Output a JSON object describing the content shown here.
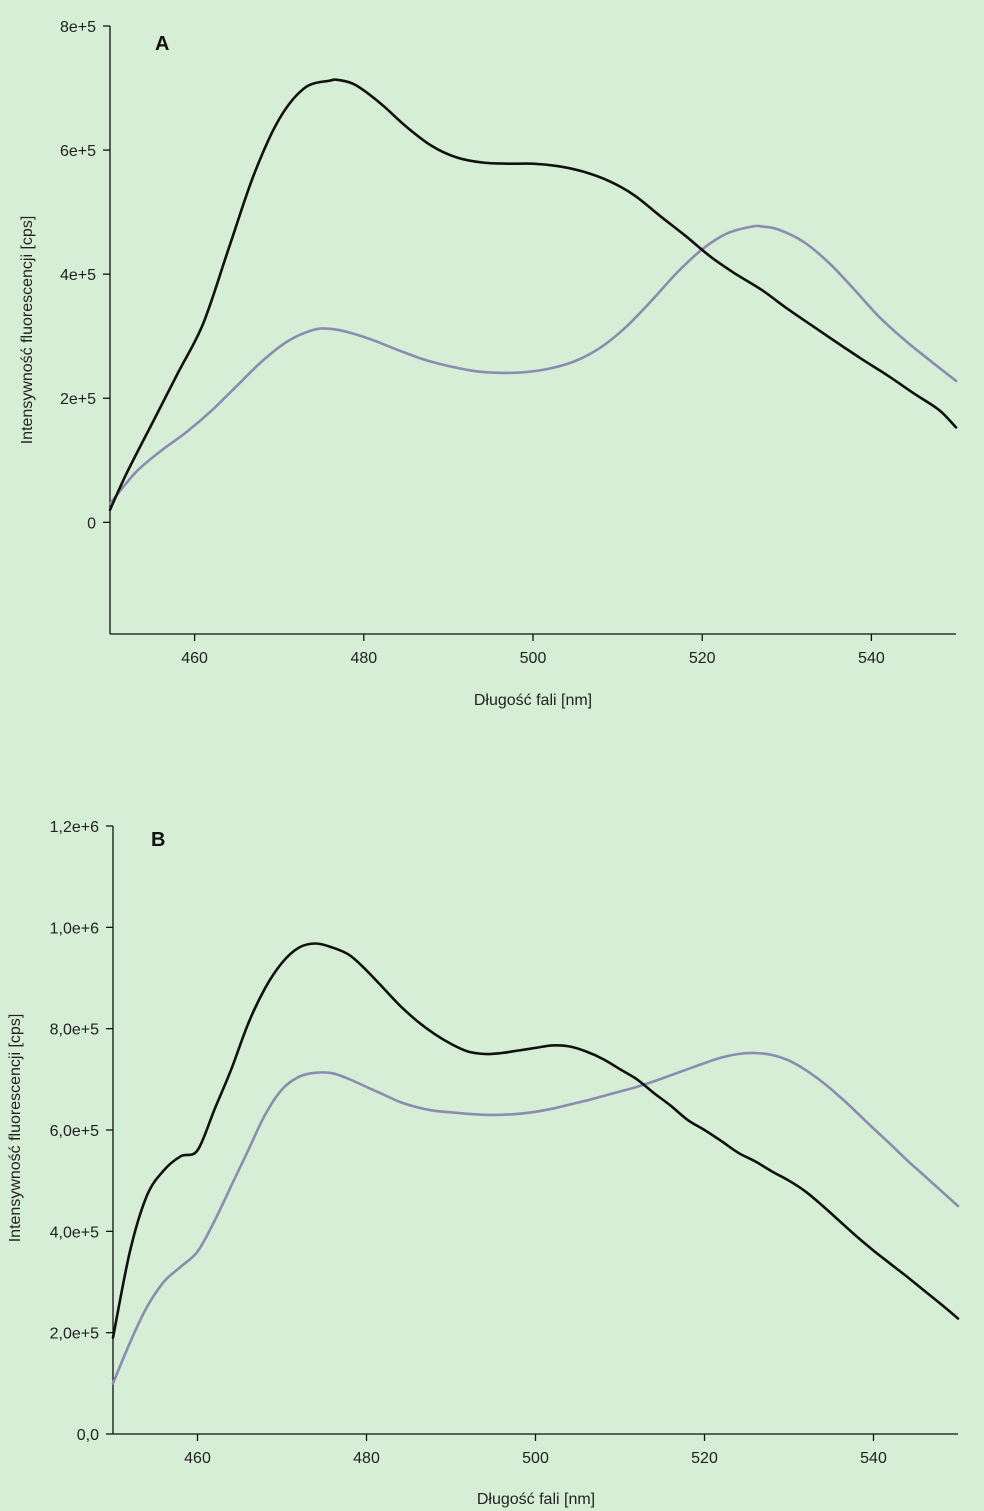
{
  "colors": {
    "background": "#d5eed5",
    "series_black": "#111111",
    "series_gray": "#8c8cb0"
  },
  "chart_data": [
    {
      "type": "line",
      "panel_label": "A",
      "title": "",
      "xlabel": "Długość fali [nm]",
      "ylabel": "Intensywność fluorescencji [cps]",
      "xlim": [
        450,
        550
      ],
      "ylim": [
        -180000,
        800000
      ],
      "x_ticks": [
        460,
        480,
        500,
        520,
        540
      ],
      "x_tick_labels": [
        "460",
        "480",
        "500",
        "520",
        "540"
      ],
      "y_ticks": [
        0,
        200000,
        400000,
        600000,
        800000
      ],
      "y_tick_labels": [
        "0",
        "2e+5",
        "4e+5",
        "6e+5",
        "8e+5"
      ],
      "grid": false,
      "legend": "none",
      "series": [
        {
          "color": "#111111",
          "x": [
            450,
            452,
            455,
            458,
            461,
            464,
            467,
            470,
            473,
            476,
            477,
            479,
            482,
            485,
            488,
            491,
            494,
            497,
            500,
            503,
            506,
            509,
            512,
            515,
            518,
            521,
            524,
            527,
            530,
            533,
            536,
            539,
            542,
            545,
            548,
            550
          ],
          "y": [
            20000,
            80000,
            160000,
            240000,
            320000,
            440000,
            560000,
            650000,
            700000,
            712000,
            713000,
            705000,
            675000,
            638000,
            607000,
            588000,
            580000,
            578000,
            578000,
            574000,
            565000,
            550000,
            527000,
            494000,
            462000,
            428000,
            400000,
            375000,
            345000,
            317000,
            289000,
            262000,
            236000,
            208000,
            181000,
            153000
          ]
        },
        {
          "color": "#8c8cb0",
          "x": [
            450,
            453,
            456,
            459,
            462,
            465,
            468,
            471,
            474,
            476,
            478,
            481,
            484,
            487,
            490,
            493,
            496,
            499,
            502,
            505,
            508,
            511,
            514,
            517,
            520,
            523,
            526,
            527,
            529,
            532,
            535,
            538,
            541,
            544,
            547,
            550
          ],
          "y": [
            30000,
            80000,
            115000,
            145000,
            180000,
            220000,
            260000,
            292000,
            310000,
            312000,
            307000,
            294000,
            278000,
            263000,
            252000,
            244000,
            241000,
            242000,
            248000,
            260000,
            282000,
            315000,
            357000,
            402000,
            440000,
            466000,
            477000,
            477000,
            472000,
            452000,
            418000,
            375000,
            330000,
            293000,
            260000,
            228000
          ]
        }
      ]
    },
    {
      "type": "line",
      "panel_label": "B",
      "title": "",
      "xlabel": "Długość fali [nm]",
      "ylabel": "Intensywność fluorescencji [cps]",
      "xlim": [
        450,
        550
      ],
      "ylim": [
        0,
        1200000
      ],
      "x_ticks": [
        460,
        480,
        500,
        520,
        540
      ],
      "x_tick_labels": [
        "460",
        "480",
        "500",
        "520",
        "540"
      ],
      "y_ticks": [
        0,
        200000,
        400000,
        600000,
        800000,
        1000000,
        1200000
      ],
      "y_tick_labels": [
        "0,0",
        "2,0e+5",
        "4,0e+5",
        "6,0e+5",
        "8,0e+5",
        "1,0e+6",
        "1,2e+6"
      ],
      "grid": false,
      "legend": "none",
      "series": [
        {
          "color": "#111111",
          "x": [
            450,
            452,
            454,
            456,
            458,
            460,
            462,
            464,
            466,
            468,
            470,
            472,
            474,
            476,
            478,
            480,
            482,
            484,
            486,
            488,
            490,
            492,
            494,
            496,
            498,
            500,
            502,
            504,
            506,
            508,
            510,
            512,
            514,
            516,
            518,
            520,
            522,
            524,
            526,
            528,
            530,
            532,
            534,
            536,
            538,
            540,
            542,
            544,
            546,
            548,
            550
          ],
          "y": [
            190000,
            360000,
            470000,
            520000,
            548000,
            560000,
            640000,
            720000,
            810000,
            880000,
            930000,
            960000,
            968000,
            960000,
            945000,
            915000,
            880000,
            845000,
            815000,
            790000,
            770000,
            755000,
            750000,
            752000,
            757000,
            762000,
            767000,
            765000,
            755000,
            740000,
            720000,
            700000,
            673000,
            648000,
            620000,
            600000,
            578000,
            555000,
            538000,
            518000,
            500000,
            478000,
            450000,
            420000,
            390000,
            362000,
            336000,
            310000,
            283000,
            256000,
            228000
          ]
        },
        {
          "color": "#8c8cb0",
          "x": [
            450,
            452,
            454,
            456,
            458,
            460,
            462,
            464,
            466,
            468,
            470,
            472,
            474,
            476,
            478,
            480,
            482,
            484,
            486,
            488,
            490,
            492,
            494,
            496,
            498,
            500,
            502,
            504,
            506,
            508,
            510,
            512,
            514,
            516,
            518,
            520,
            522,
            524,
            526,
            528,
            530,
            532,
            534,
            536,
            538,
            540,
            542,
            544,
            546,
            548,
            550
          ],
          "y": [
            100000,
            180000,
            250000,
            300000,
            330000,
            360000,
            420000,
            490000,
            560000,
            630000,
            680000,
            705000,
            713000,
            712000,
            700000,
            685000,
            670000,
            655000,
            645000,
            638000,
            635000,
            632000,
            630000,
            630000,
            632000,
            636000,
            642000,
            650000,
            658000,
            667000,
            676000,
            685000,
            696000,
            708000,
            720000,
            732000,
            743000,
            750000,
            752000,
            748000,
            737000,
            718000,
            694000,
            666000,
            635000,
            603000,
            572000,
            540000,
            510000,
            480000,
            450000
          ]
        }
      ]
    }
  ]
}
